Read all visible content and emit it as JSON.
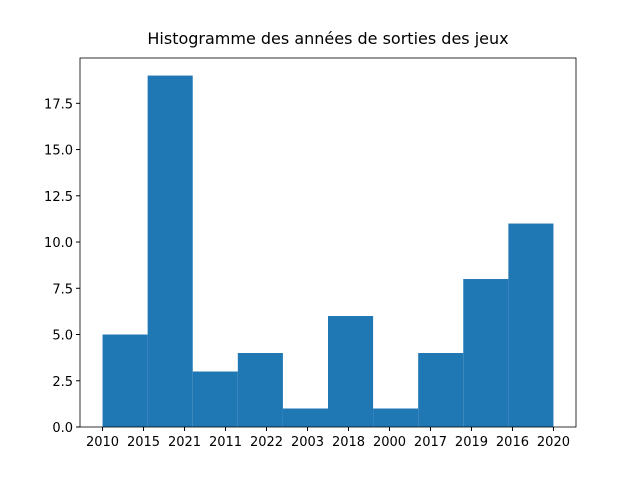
{
  "chart_data": {
    "type": "histogram",
    "title": "Histogramme des années de sorties des jeux",
    "bins": [
      0,
      1.1,
      2.2,
      3.3,
      4.4,
      5.5,
      6.6,
      7.7,
      8.8,
      9.9,
      11
    ],
    "counts": [
      5,
      19,
      3,
      4,
      1,
      6,
      1,
      4,
      8,
      11
    ],
    "color": "#1f77b4",
    "xlim": [
      -0.55,
      11.55
    ],
    "xticks": [
      {
        "value": 0,
        "label": "2010"
      },
      {
        "value": 1,
        "label": "2015"
      },
      {
        "value": 2,
        "label": "2021"
      },
      {
        "value": 3,
        "label": "2011"
      },
      {
        "value": 4,
        "label": "2022"
      },
      {
        "value": 5,
        "label": "2003"
      },
      {
        "value": 6,
        "label": "2018"
      },
      {
        "value": 7,
        "label": "2000"
      },
      {
        "value": 8,
        "label": "2017"
      },
      {
        "value": 9,
        "label": "2019"
      },
      {
        "value": 10,
        "label": "2016"
      },
      {
        "value": 11,
        "label": "2020"
      }
    ],
    "ylim": [
      0,
      19.95
    ],
    "yticks": [
      {
        "value": 0,
        "label": "0.0"
      },
      2.5,
      {
        "value": 5,
        "label": "5.0"
      },
      7.5,
      {
        "value": 10,
        "label": "10.0"
      },
      12.5,
      {
        "value": 15,
        "label": "15.0"
      },
      17.5
    ]
  }
}
